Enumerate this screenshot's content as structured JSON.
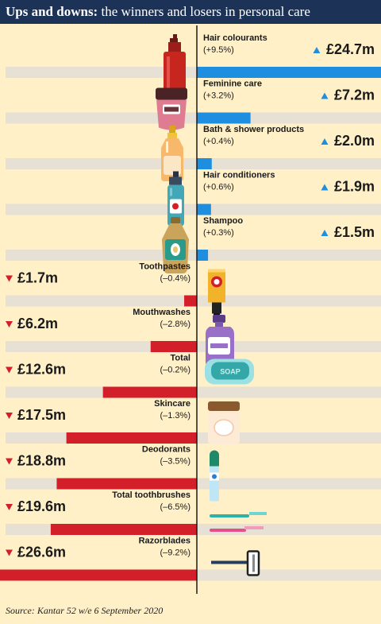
{
  "header": {
    "title_bold": "Ups and downs:",
    "title_rest": "the winners and losers in personal care"
  },
  "source": "Source: Kantar 52 w/e 6 September 2020",
  "colors": {
    "positive": "#1e8fe0",
    "negative": "#d31f2a",
    "track": "#e6e1d4",
    "background": "#fff0c8",
    "header": "#1c3357"
  },
  "chart_data": {
    "type": "bar",
    "title": "",
    "xlabel": "",
    "ylabel": "",
    "unit": "£m",
    "xlim": [
      -26.6,
      24.7
    ],
    "grid": false,
    "legend": "none",
    "categories": [
      "Hair colourants",
      "Feminine care",
      "Bath & shower products",
      "Hair conditioners",
      "Shampoo",
      "Toothpastes",
      "Mouthwashes",
      "Total",
      "Skincare",
      "Deodorants",
      "Total toothbrushes",
      "Razorblades"
    ],
    "values": [
      24.7,
      7.2,
      2.0,
      1.9,
      1.5,
      -1.7,
      -6.2,
      -12.6,
      -17.5,
      -18.8,
      -19.6,
      -26.6
    ],
    "value_labels": [
      "£24.7m",
      "£7.2m",
      "£2.0m",
      "£1.9m",
      "£1.5m",
      "£1.7m",
      "£6.2m",
      "£12.6m",
      "£17.5m",
      "£18.8m",
      "£19.6m",
      "£26.6m"
    ],
    "pct_labels": [
      "(+9.5%)",
      "(+3.2%)",
      "(+0.4%)",
      "(+0.6%)",
      "(+0.3%)",
      "(–0.4%)",
      "(–2.8%)",
      "(–0.2%)",
      "(–1.3%)",
      "(–3.5%)",
      "(–6.5%)",
      "(–9.2%)"
    ],
    "icons": [
      "hair-dye-bottle-icon",
      "cream-jar-icon",
      "bath-bottle-icon",
      "conditioner-bottle-icon",
      "shampoo-bottle-icon",
      "toothpaste-tube-icon",
      "mouthwash-bottle-icon",
      "soap-bar-icon",
      "skincare-jar-icon",
      "deodorant-spray-icon",
      "toothbrushes-icon",
      "razor-icon"
    ],
    "soap_label": "SOAP"
  }
}
